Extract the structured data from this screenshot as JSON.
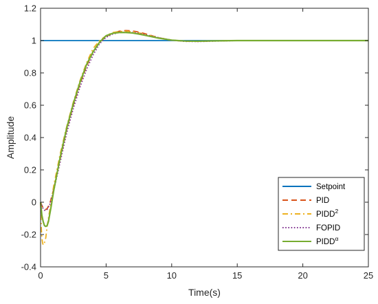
{
  "chart_data": {
    "type": "line",
    "xlabel": "Time(s)",
    "ylabel": "Amplitude",
    "xlim": [
      0,
      25
    ],
    "ylim": [
      -0.4,
      1.2
    ],
    "xticks": [
      0,
      5,
      10,
      15,
      20,
      25
    ],
    "yticks": [
      -0.4,
      -0.2,
      0,
      0.2,
      0.4,
      0.6,
      0.8,
      1,
      1.2
    ],
    "xtick_labels": [
      "0",
      "5",
      "10",
      "15",
      "20",
      "25"
    ],
    "ytick_labels": [
      "-0.4",
      "-0.2",
      "0",
      "0.2",
      "0.4",
      "0.6",
      "0.8",
      "1",
      "1.2"
    ],
    "grid": false,
    "legend_position": "bottom-right",
    "series": [
      {
        "name": "Setpoint",
        "label_base": "Setpoint",
        "label_sup": "",
        "color": "#0072BD",
        "style": "solid",
        "x": [
          0,
          25
        ],
        "y": [
          1,
          1
        ]
      },
      {
        "name": "PID",
        "label_base": "PID",
        "label_sup": "",
        "color": "#D95319",
        "style": "dashed",
        "x": [
          0,
          0.1,
          0.2,
          0.3,
          0.4,
          0.5,
          0.7,
          1,
          1.5,
          2,
          2.5,
          3,
          3.5,
          4,
          4.5,
          5,
          5.5,
          6,
          6.5,
          7,
          7.5,
          8,
          8.5,
          9,
          9.5,
          10,
          11,
          12,
          13,
          14,
          15,
          17,
          20,
          25
        ],
        "y": [
          0,
          -0.02,
          -0.035,
          -0.045,
          -0.045,
          -0.04,
          -0.01,
          0.08,
          0.27,
          0.45,
          0.6,
          0.73,
          0.84,
          0.93,
          0.99,
          1.025,
          1.045,
          1.058,
          1.062,
          1.06,
          1.053,
          1.042,
          1.03,
          1.018,
          1.008,
          1.002,
          0.996,
          0.995,
          0.997,
          0.999,
          1.0,
          1.0,
          1.0,
          1.0
        ]
      },
      {
        "name": "PIDD2",
        "label_base": "PIDD",
        "label_sup": "2",
        "color": "#EDB120",
        "style": "dashdot",
        "x": [
          0,
          0.05,
          0.1,
          0.15,
          0.2,
          0.3,
          0.4,
          0.5,
          0.7,
          1,
          1.5,
          2,
          2.5,
          3,
          3.5,
          4,
          4.5,
          5,
          5.5,
          6,
          6.5,
          7,
          7.5,
          8,
          9,
          10,
          11,
          12,
          13,
          15,
          20,
          25
        ],
        "y": [
          0,
          -0.15,
          -0.22,
          -0.25,
          -0.265,
          -0.25,
          -0.22,
          -0.15,
          -0.05,
          0.1,
          0.3,
          0.47,
          0.62,
          0.75,
          0.86,
          0.95,
          1.0,
          1.03,
          1.05,
          1.056,
          1.058,
          1.055,
          1.048,
          1.038,
          1.018,
          1.003,
          0.996,
          0.996,
          0.998,
          1.0,
          1.0,
          1.0
        ]
      },
      {
        "name": "FOPID",
        "label_base": "FOPID",
        "label_sup": "",
        "color": "#7E2F8E",
        "style": "dotted",
        "x": [
          0,
          0.1,
          0.2,
          0.3,
          0.4,
          0.5,
          0.7,
          1,
          1.5,
          2,
          2.5,
          3,
          3.5,
          4,
          4.5,
          5,
          5.5,
          6,
          6.5,
          7,
          7.5,
          8,
          9,
          10,
          11,
          12,
          13,
          14,
          15,
          17,
          20,
          25
        ],
        "y": [
          0,
          -0.02,
          -0.04,
          -0.05,
          -0.05,
          -0.045,
          -0.015,
          0.07,
          0.25,
          0.43,
          0.58,
          0.71,
          0.82,
          0.91,
          0.98,
          1.02,
          1.04,
          1.05,
          1.052,
          1.05,
          1.045,
          1.036,
          1.018,
          1.003,
          0.995,
          0.994,
          0.996,
          0.998,
          1.0,
          1.0,
          1.0,
          1.0
        ]
      },
      {
        "name": "PIDDalpha",
        "label_base": "PIDD",
        "label_sup": "α",
        "color": "#77AC30",
        "style": "solid",
        "x": [
          0,
          0.1,
          0.2,
          0.3,
          0.4,
          0.5,
          0.6,
          0.8,
          1,
          1.5,
          2,
          2.5,
          3,
          3.5,
          4,
          4.5,
          5,
          5.5,
          6,
          6.5,
          7,
          7.5,
          8,
          9,
          10,
          11,
          12,
          13,
          15,
          20,
          25
        ],
        "y": [
          0,
          -0.08,
          -0.12,
          -0.145,
          -0.15,
          -0.145,
          -0.12,
          -0.03,
          0.07,
          0.28,
          0.46,
          0.61,
          0.74,
          0.85,
          0.93,
          0.99,
          1.03,
          1.045,
          1.05,
          1.05,
          1.047,
          1.04,
          1.032,
          1.015,
          1.003,
          0.997,
          0.996,
          0.998,
          1.0,
          1.0,
          1.0
        ]
      }
    ]
  }
}
